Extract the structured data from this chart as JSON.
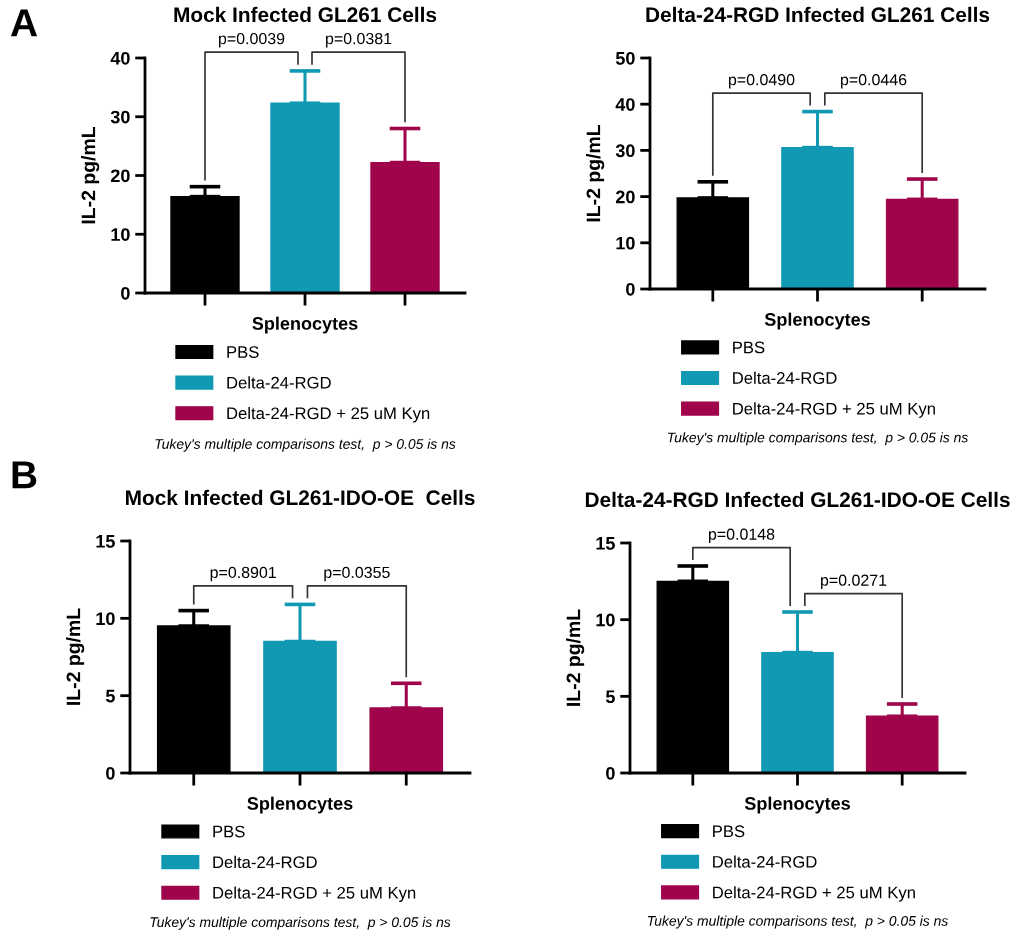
{
  "chart_data": [
    {
      "type": "bar",
      "title": "Mock Infected GL261 Cells",
      "xlabel": "Splenocytes",
      "ylabel": "IL-2 pg/mL",
      "categories": [
        null,
        null,
        null
      ],
      "series": [
        {
          "name": "PBS",
          "color": "#000000",
          "values": [
            16.4,
            null,
            null
          ],
          "errors": [
            [
              16.4,
              18.1
            ],
            null,
            null
          ]
        },
        {
          "name": "Delta-24-RGD",
          "color": "#1199b4",
          "values": [
            null,
            32.3,
            null
          ],
          "errors": [
            null,
            [
              32.3,
              37.8
            ],
            null
          ]
        },
        {
          "name": "Delta-24-RGD + 25 uM Kyn",
          "color": "#a0054b",
          "values": [
            null,
            null,
            22.2
          ],
          "errors": [
            null,
            null,
            [
              22.2,
              28.0
            ]
          ]
        }
      ],
      "ylim": [
        0,
        40
      ],
      "yticks": [
        0,
        10,
        20,
        30,
        40
      ],
      "grid": false,
      "legend": "bottom",
      "tick_labels": "y",
      "annotations": [
        "A",
        "p=0.0039",
        "p=0.0381",
        "Tukey's multiple comparisons test,  p > 0.05 is ns"
      ]
    },
    {
      "type": "bar",
      "title": "Delta-24-RGD Infected GL261 Cells",
      "xlabel": "Splenocytes",
      "ylabel": "IL-2 pg/mL",
      "categories": [
        null,
        null,
        null
      ],
      "series": [
        {
          "name": "PBS",
          "color": "#000000",
          "values": [
            19.7,
            null,
            null
          ],
          "errors": [
            [
              19.7,
              23.2
            ],
            null,
            null
          ]
        },
        {
          "name": "Delta-24-RGD",
          "color": "#1199b4",
          "values": [
            null,
            30.6,
            null
          ],
          "errors": [
            null,
            [
              30.6,
              38.4
            ],
            null
          ]
        },
        {
          "name": "Delta-24-RGD + 25 uM Kyn",
          "color": "#a0054b",
          "values": [
            null,
            null,
            19.4
          ],
          "errors": [
            null,
            null,
            [
              19.4,
              23.8
            ]
          ]
        }
      ],
      "ylim": [
        0,
        50
      ],
      "yticks": [
        0,
        10,
        20,
        30,
        40,
        50
      ],
      "grid": false,
      "legend": "bottom",
      "tick_labels": "y",
      "annotations": [
        "p=0.0490",
        "p=0.0446",
        "Tukey's multiple comparisons test,  p > 0.05 is ns"
      ]
    },
    {
      "type": "bar",
      "title": "Mock Infected GL261-IDO-OE  Cells",
      "xlabel": "Splenocytes",
      "ylabel": "IL-2 pg/mL",
      "categories": [
        null,
        null,
        null
      ],
      "series": [
        {
          "name": "PBS",
          "color": "#000000",
          "values": [
            9.5,
            null,
            null
          ],
          "errors": [
            [
              9.5,
              10.5
            ],
            null,
            null
          ]
        },
        {
          "name": "Delta-24-RGD",
          "color": "#1199b4",
          "values": [
            null,
            8.5,
            null
          ],
          "errors": [
            null,
            [
              8.5,
              10.9
            ],
            null
          ]
        },
        {
          "name": "Delta-24-RGD + 25 uM Kyn",
          "color": "#a0054b",
          "values": [
            null,
            null,
            4.2
          ],
          "errors": [
            null,
            null,
            [
              4.2,
              5.8
            ]
          ]
        }
      ],
      "ylim": [
        0,
        15
      ],
      "yticks": [
        0,
        5,
        10,
        15
      ],
      "grid": false,
      "legend": "bottom",
      "tick_labels": "y",
      "annotations": [
        "B",
        "p=0.8901",
        "p=0.0355",
        "Tukey's multiple comparisons test,  p > 0.05 is ns"
      ]
    },
    {
      "type": "bar",
      "title": "Delta-24-RGD Infected GL261-IDO-OE Cells",
      "xlabel": "Splenocytes",
      "ylabel": "IL-2 pg/mL",
      "categories": [
        null,
        null,
        null
      ],
      "series": [
        {
          "name": "PBS",
          "color": "#000000",
          "values": [
            12.5,
            null,
            null
          ],
          "errors": [
            [
              12.5,
              13.5
            ],
            null,
            null
          ]
        },
        {
          "name": "Delta-24-RGD",
          "color": "#1199b4",
          "values": [
            null,
            7.85,
            null
          ],
          "errors": [
            null,
            [
              7.85,
              10.5
            ],
            null
          ]
        },
        {
          "name": "Delta-24-RGD + 25 uM Kyn",
          "color": "#a0054b",
          "values": [
            null,
            null,
            3.7
          ],
          "errors": [
            null,
            null,
            [
              3.7,
              4.5
            ]
          ]
        }
      ],
      "ylim": [
        0,
        15
      ],
      "yticks": [
        0,
        5,
        10,
        15
      ],
      "grid": false,
      "legend": "bottom",
      "tick_labels": "y",
      "annotations": [
        "p=0.0148",
        "p=0.0271",
        "Tukey's multiple comparisons test,  p > 0.05 is ns"
      ]
    }
  ]
}
